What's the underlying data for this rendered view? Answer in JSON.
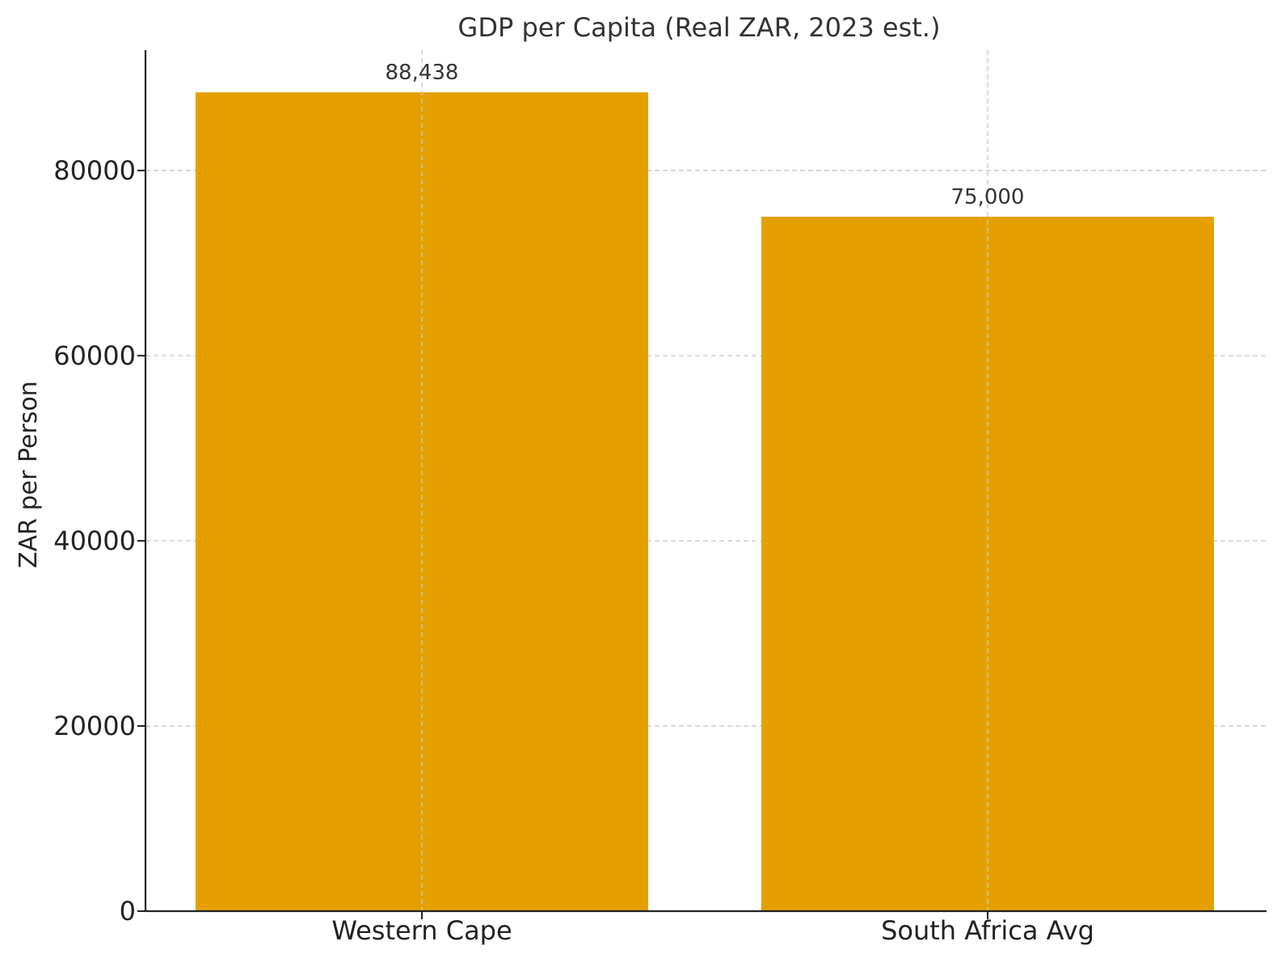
{
  "chart_data": {
    "type": "bar",
    "title": "GDP per Capita (Real ZAR, 2023 est.)",
    "xlabel": "",
    "ylabel": "ZAR per Person",
    "categories": [
      "Western Cape",
      "South Africa Avg"
    ],
    "values": [
      88438,
      75000
    ],
    "data_labels": [
      "88,438",
      "75,000"
    ],
    "ylim": [
      0,
      93000
    ],
    "yticks": [
      0,
      20000,
      40000,
      60000,
      80000
    ],
    "ytick_labels": [
      "0",
      "20000",
      "40000",
      "60000",
      "80000"
    ],
    "grid": true,
    "bar_color": "#E5A000"
  }
}
